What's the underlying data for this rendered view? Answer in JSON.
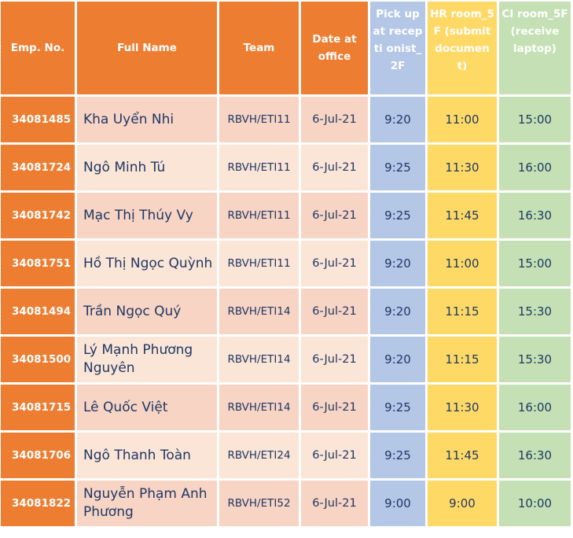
{
  "headers": {
    "emp_no": "Emp. No.",
    "full_name": "Full Name",
    "team": "Team",
    "date": "Date at office",
    "pickup": "Pick up at recepti onist_ 2F",
    "hr": "HR room_5F (submit documen t)",
    "ci": "CI room_5F (receive laptop)"
  },
  "rows": [
    {
      "emp": "34081485",
      "name": "Kha Uyển Nhi",
      "team": "RBVH/ETI11",
      "date": "6-Jul-21",
      "pickup": "9:20",
      "hr": "11:00",
      "ci": "15:00"
    },
    {
      "emp": "34081724",
      "name": "Ngô Minh Tú",
      "team": "RBVH/ETI11",
      "date": "6-Jul-21",
      "pickup": "9:25",
      "hr": "11:30",
      "ci": "16:00"
    },
    {
      "emp": "34081742",
      "name": "Mạc Thị Thúy Vy",
      "team": "RBVH/ETI11",
      "date": "6-Jul-21",
      "pickup": "9:25",
      "hr": "11:45",
      "ci": "16:30"
    },
    {
      "emp": "34081751",
      "name": "Hồ Thị Ngọc Quỳnh",
      "team": "RBVH/ETI11",
      "date": "6-Jul-21",
      "pickup": "9:20",
      "hr": "11:00",
      "ci": "15:00"
    },
    {
      "emp": "34081494",
      "name": "Trần Ngọc Quý",
      "team": "RBVH/ETI14",
      "date": "6-Jul-21",
      "pickup": "9:20",
      "hr": "11:15",
      "ci": "15:30"
    },
    {
      "emp": "34081500",
      "name": "Lý Mạnh Phương Nguyên",
      "team": "RBVH/ETI14",
      "date": "6-Jul-21",
      "pickup": "9:20",
      "hr": "11:15",
      "ci": "15:30"
    },
    {
      "emp": "34081715",
      "name": "Lê Quốc Việt",
      "team": "RBVH/ETI14",
      "date": "6-Jul-21",
      "pickup": "9:25",
      "hr": "11:30",
      "ci": "16:00"
    },
    {
      "emp": "34081706",
      "name": "Ngô Thanh Toàn",
      "team": "RBVH/ETI24",
      "date": "6-Jul-21",
      "pickup": "9:25",
      "hr": "11:45",
      "ci": "16:30"
    },
    {
      "emp": "34081822",
      "name": "Nguyễn Phạm Anh Phương",
      "team": "RBVH/ETI52",
      "date": "6-Jul-21",
      "pickup": "9:00",
      "hr": "9:00",
      "ci": "10:00"
    }
  ]
}
